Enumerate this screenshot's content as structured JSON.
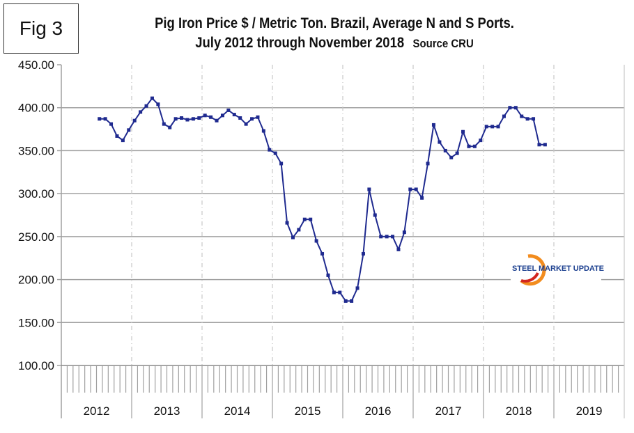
{
  "figure_label": "Fig 3",
  "logo_text": "STEEL MARKET UPDATE",
  "colors": {
    "series": "#1f2a8f",
    "grid": "#a0a0a0",
    "logo_orange": "#f28c1e",
    "logo_red": "#d2261f",
    "logo_blue": "#1b3f8f"
  },
  "chart_data": {
    "type": "line",
    "title": "Pig Iron Price $ / Metric Ton. Brazil, Average N and S Ports.",
    "subtitle": "July 2012 through November 2018",
    "source": "Source CRU",
    "xlabel": "",
    "ylabel": "",
    "ylim": [
      100,
      450
    ],
    "yticks": [
      "100.00",
      "150.00",
      "200.00",
      "250.00",
      "300.00",
      "350.00",
      "400.00",
      "450.00"
    ],
    "year_labels": [
      "2012",
      "2013",
      "2014",
      "2015",
      "2016",
      "2017",
      "2018",
      "2019"
    ],
    "grid": "horizontal solid, vertical dashed at years",
    "marker": "square",
    "start": "2012-07",
    "end": "2018-11",
    "values": [
      387,
      387,
      381,
      367,
      362,
      374,
      385,
      395,
      402,
      411,
      404,
      381,
      377,
      387,
      388,
      386,
      387,
      388,
      391,
      389,
      385,
      391,
      397,
      392,
      388,
      381,
      387,
      389,
      373,
      351,
      347,
      335,
      266,
      249,
      258,
      270,
      270,
      245,
      230,
      205,
      185,
      185,
      175,
      175,
      190,
      230,
      305,
      275,
      250,
      250,
      250,
      235,
      255,
      305,
      305,
      295,
      335,
      380,
      360,
      350,
      342,
      347,
      372,
      355,
      355,
      362,
      378,
      378,
      378,
      390,
      400,
      400,
      390,
      387,
      387,
      357,
      357
    ]
  }
}
